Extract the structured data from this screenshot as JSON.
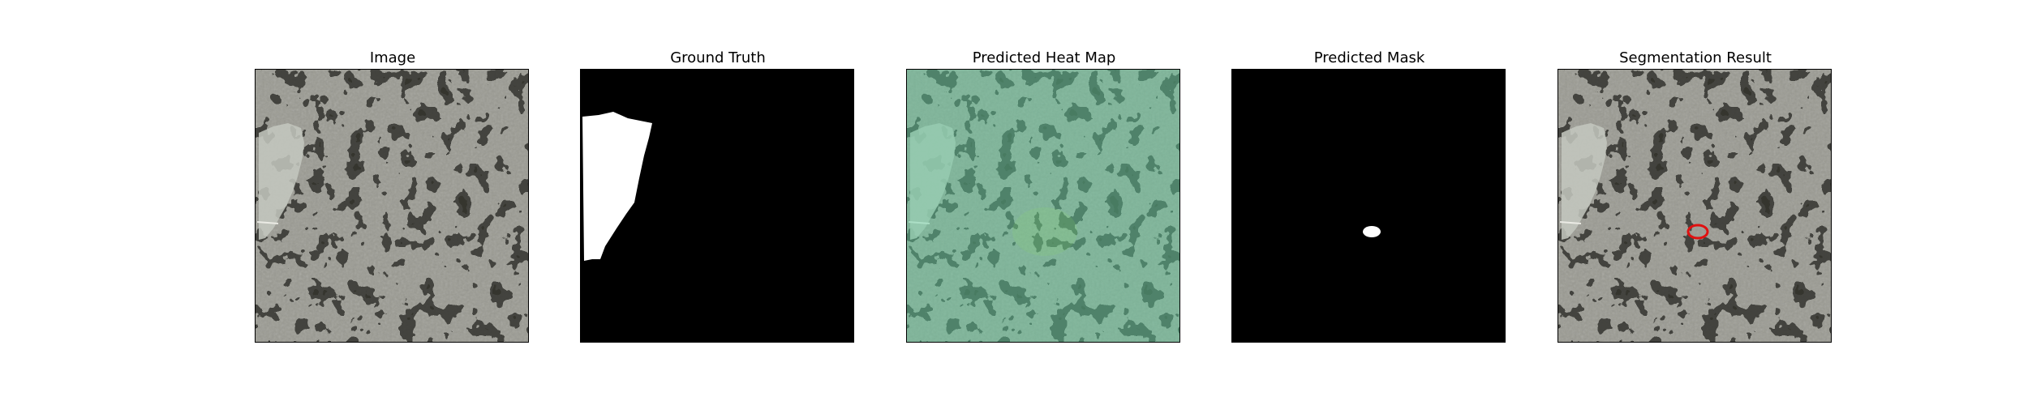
{
  "panels": [
    {
      "title": "Image"
    },
    {
      "title": "Ground Truth"
    },
    {
      "title": "Predicted Heat Map"
    },
    {
      "title": "Predicted Mask"
    },
    {
      "title": "Segmentation Result"
    }
  ],
  "colors": {
    "mask_background": "#000000",
    "mask_foreground": "#ffffff",
    "texture_base": "#9a9a92",
    "texture_spot": "#3a3a36",
    "heatmap_tint": "#5fd0a0",
    "contour": "#e01010"
  }
}
